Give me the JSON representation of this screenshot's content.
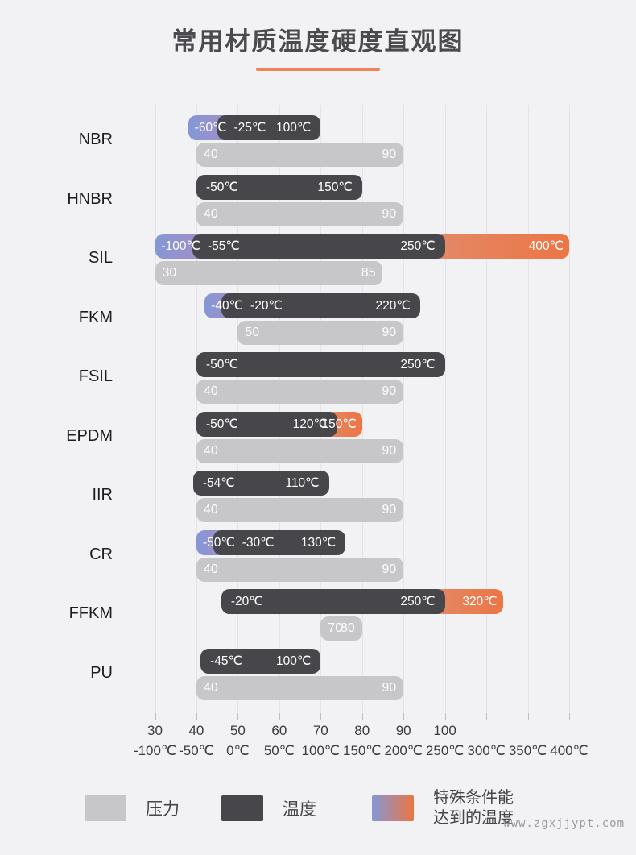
{
  "title": "常用材质温度硬度直观图",
  "watermark": "www.zgxjjypt.com",
  "colors": {
    "background": "#f2f2f4",
    "grid_line": "#e3e3e8",
    "temperature_bar": "#47474b",
    "pressure_bar": "#c7c7ca",
    "special_blue": "#8497d6",
    "special_purple": "#a88dc4",
    "special_orange": "#ec7544",
    "title_underline": "#ef8355"
  },
  "legend": {
    "items": [
      {
        "label": "压力",
        "swatch": "pressure"
      },
      {
        "label": "温度",
        "swatch": "temperature"
      },
      {
        "label_line1": "特殊条件能",
        "label_line2": "达到的温度",
        "swatch": "special"
      }
    ]
  },
  "chart_data": {
    "type": "bar",
    "title": "常用材质温度硬度直观图",
    "orientation": "horizontal",
    "grid": true,
    "legend_position": "bottom",
    "temperature_axis": {
      "range": [
        -100,
        400
      ],
      "step": 50,
      "unit": "℃",
      "ticks": [
        "-100℃",
        "-50℃",
        "0℃",
        "50℃",
        "100℃",
        "150℃",
        "200℃",
        "250℃",
        "300℃",
        "350℃",
        "400℃"
      ]
    },
    "hardness_axis": {
      "range": [
        30,
        100
      ],
      "step": 10,
      "ticks": [
        "30",
        "40",
        "50",
        "60",
        "70",
        "80",
        "90",
        "100"
      ]
    },
    "materials": [
      {
        "name": "NBR",
        "temperature": {
          "special_low": -60,
          "min": -25,
          "max": 100,
          "special_low_label": "-60℃",
          "min_label": "-25℃",
          "max_label": "100℃"
        },
        "pressure": {
          "min": 40,
          "max": 90,
          "min_label": "40",
          "max_label": "90"
        }
      },
      {
        "name": "HNBR",
        "temperature": {
          "min": -50,
          "max": 150,
          "min_label": "-50℃",
          "max_label": "150℃"
        },
        "pressure": {
          "min": 40,
          "max": 90,
          "min_label": "40",
          "max_label": "90"
        }
      },
      {
        "name": "SIL",
        "temperature": {
          "special_low": -100,
          "min": -55,
          "max": 250,
          "special_high": 400,
          "special_low_label": "-100℃",
          "min_label": "-55℃",
          "max_label": "250℃",
          "special_high_label": "400℃"
        },
        "pressure": {
          "min": 30,
          "max": 85,
          "min_label": "30",
          "max_label": "85"
        }
      },
      {
        "name": "FKM",
        "temperature": {
          "special_low": -40,
          "min": -20,
          "max": 220,
          "special_low_label": "-40℃",
          "min_label": "-20℃",
          "max_label": "220℃"
        },
        "pressure": {
          "min": 50,
          "max": 90,
          "min_label": "50",
          "max_label": "90"
        }
      },
      {
        "name": "FSIL",
        "temperature": {
          "min": -50,
          "max": 250,
          "min_label": "-50℃",
          "max_label": "250℃"
        },
        "pressure": {
          "min": 40,
          "max": 90,
          "min_label": "40",
          "max_label": "90"
        }
      },
      {
        "name": "EPDM",
        "temperature": {
          "min": -50,
          "max": 120,
          "special_high": 150,
          "min_label": "-50℃",
          "max_label": "120℃",
          "special_high_label": "150℃"
        },
        "pressure": {
          "min": 40,
          "max": 90,
          "min_label": "40",
          "max_label": "90"
        }
      },
      {
        "name": "IIR",
        "temperature": {
          "min": -54,
          "max": 110,
          "min_label": "-54℃",
          "max_label": "110℃"
        },
        "pressure": {
          "min": 40,
          "max": 90,
          "min_label": "40",
          "max_label": "90"
        }
      },
      {
        "name": "CR",
        "temperature": {
          "special_low": -50,
          "min": -30,
          "max": 130,
          "special_low_label": "-50℃",
          "min_label": "-30℃",
          "max_label": "130℃"
        },
        "pressure": {
          "min": 40,
          "max": 90,
          "min_label": "40",
          "max_label": "90"
        }
      },
      {
        "name": "FFKM",
        "temperature": {
          "min": -20,
          "max": 250,
          "special_high": 320,
          "min_label": "-20℃",
          "max_label": "250℃",
          "special_high_label": "320℃"
        },
        "pressure": {
          "min": 70,
          "max": 80,
          "min_label": "70",
          "max_label": "80"
        }
      },
      {
        "name": "PU",
        "temperature": {
          "min": -45,
          "max": 100,
          "min_label": "-45℃",
          "max_label": "100℃"
        },
        "pressure": {
          "min": 40,
          "max": 90,
          "min_label": "40",
          "max_label": "90"
        }
      }
    ]
  }
}
